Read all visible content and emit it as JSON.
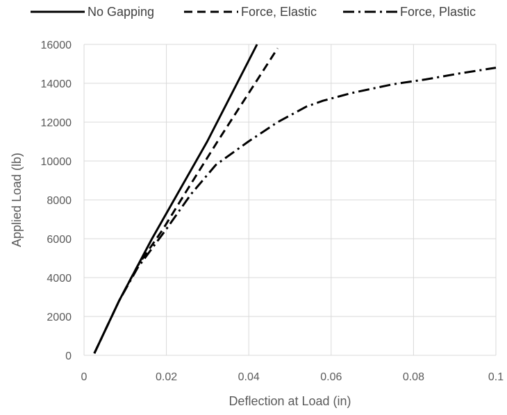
{
  "chart_data": {
    "type": "line",
    "title": "",
    "xlabel": "Deflection at Load (in)",
    "ylabel": "Applied Load (lb)",
    "xlim": [
      0,
      0.1
    ],
    "ylim": [
      0,
      16000
    ],
    "x_ticks": [
      0,
      0.02,
      0.04,
      0.06,
      0.08,
      0.1
    ],
    "x_tick_labels": [
      "0",
      "0.02",
      "0.04",
      "0.06",
      "0.08",
      "0.1"
    ],
    "y_ticks": [
      0,
      2000,
      4000,
      6000,
      8000,
      10000,
      12000,
      14000,
      16000
    ],
    "y_tick_labels": [
      "0",
      "2000",
      "4000",
      "6000",
      "8000",
      "10000",
      "12000",
      "14000",
      "16000"
    ],
    "grid": true,
    "legend_position": "top",
    "series": [
      {
        "name": "No Gapping",
        "dash": "solid",
        "color": "#000000",
        "points": [
          [
            0.0025,
            100
          ],
          [
            0.0085,
            2800
          ],
          [
            0.0165,
            6000
          ],
          [
            0.0299,
            11000
          ],
          [
            0.042,
            16000
          ]
        ]
      },
      {
        "name": "Force, Elastic",
        "dash": "dashed",
        "color": "#000000",
        "points": [
          [
            0.0025,
            100
          ],
          [
            0.0085,
            2800
          ],
          [
            0.013,
            4600
          ],
          [
            0.0192,
            6500
          ],
          [
            0.025,
            8500
          ],
          [
            0.0324,
            11000
          ],
          [
            0.047,
            15800
          ]
        ]
      },
      {
        "name": "Force, Plastic",
        "dash": "dash-dot",
        "color": "#000000",
        "points": [
          [
            0.0025,
            100
          ],
          [
            0.0085,
            2800
          ],
          [
            0.013,
            4500
          ],
          [
            0.02,
            6500
          ],
          [
            0.026,
            8300
          ],
          [
            0.032,
            9800
          ],
          [
            0.0399,
            11000
          ],
          [
            0.047,
            12000
          ],
          [
            0.054,
            12800
          ],
          [
            0.058,
            13100
          ],
          [
            0.065,
            13500
          ],
          [
            0.075,
            13950
          ],
          [
            0.083,
            14200
          ],
          [
            0.091,
            14500
          ],
          [
            0.1,
            14800
          ]
        ]
      }
    ]
  }
}
